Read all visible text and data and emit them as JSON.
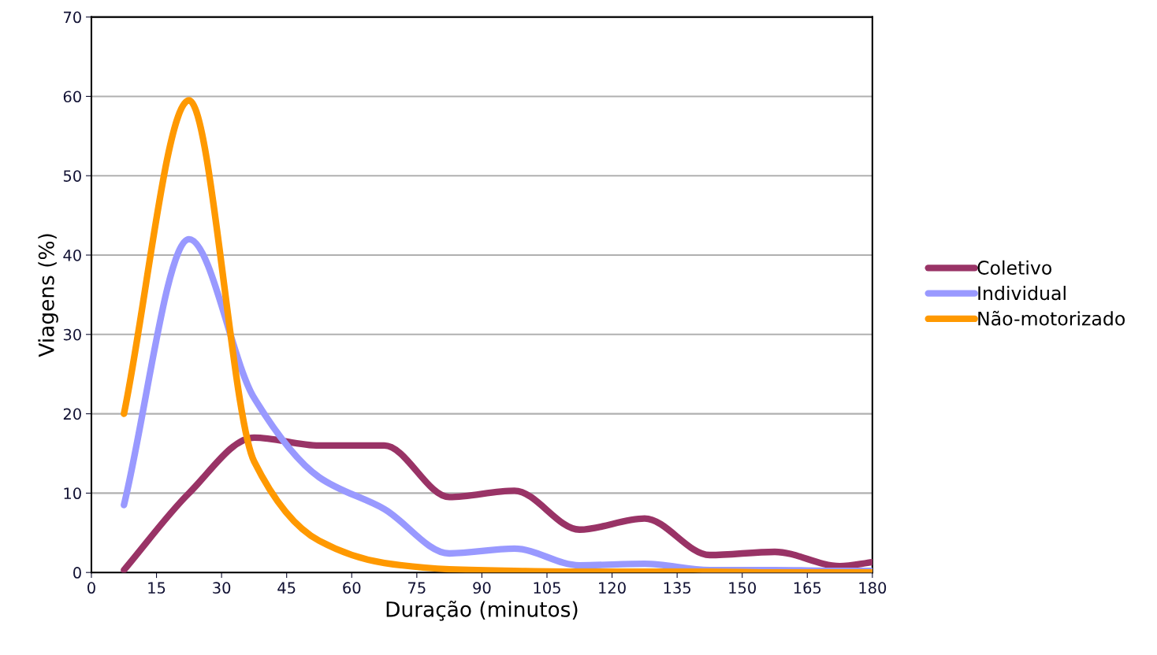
{
  "chart_data": {
    "type": "line",
    "xlabel": "Duração (minutos)",
    "ylabel": "Viagens (%)",
    "x": [
      7.5,
      22.5,
      37.5,
      52.5,
      67.5,
      82.5,
      97.5,
      112.5,
      127.5,
      142.5,
      157.5,
      172.5,
      180
    ],
    "series": [
      {
        "name": "Coletivo",
        "color": "#993366",
        "values": [
          0.3,
          10,
          17,
          16,
          16,
          9.5,
          10.3,
          5.4,
          6.8,
          2.2,
          2.6,
          0.8,
          1.3
        ]
      },
      {
        "name": "Individual",
        "color": "#9999ff",
        "values": [
          8.5,
          42,
          22,
          12,
          8,
          2.4,
          3,
          0.9,
          1.1,
          0.3,
          0.3,
          0.2,
          0.2
        ]
      },
      {
        "name": "Não-motorizado",
        "color": "#ff9900",
        "values": [
          20,
          59.5,
          14,
          4,
          1.2,
          0.4,
          0.2,
          0.1,
          0.1,
          0.1,
          0,
          0,
          0
        ]
      }
    ],
    "xlim": [
      0,
      180
    ],
    "xticks": [
      0,
      15,
      30,
      45,
      60,
      75,
      90,
      105,
      120,
      135,
      150,
      165,
      180
    ],
    "ylim": [
      0,
      70
    ],
    "yticks": [
      0,
      10,
      20,
      30,
      40,
      50,
      60,
      70
    ],
    "grid": "y",
    "legend": "right",
    "marker": "none",
    "line_style": "solid"
  }
}
